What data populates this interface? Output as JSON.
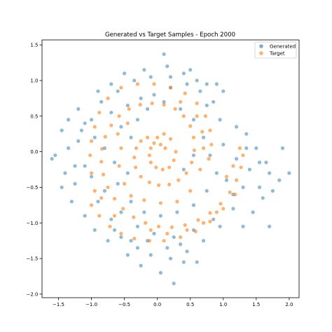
{
  "chart_data": {
    "type": "scatter",
    "title": "Generated vs Target Samples - Epoch 2000",
    "xlabel": "",
    "ylabel": "",
    "xlim": [
      -1.75,
      2.15
    ],
    "ylim": [
      -2.05,
      1.57
    ],
    "xticks": [
      -1.5,
      -1.0,
      -0.5,
      0.0,
      0.5,
      1.0,
      1.5,
      2.0
    ],
    "xtick_labels": [
      "−1.5",
      "−1.0",
      "−0.5",
      "0.0",
      "0.5",
      "1.0",
      "1.5",
      "2.0"
    ],
    "yticks": [
      -2.0,
      -1.5,
      -1.0,
      -0.5,
      0.0,
      0.5,
      1.0,
      1.5
    ],
    "ytick_labels": [
      "−2.0",
      "−1.5",
      "−1.0",
      "−0.5",
      "0.0",
      "0.5",
      "1.0",
      "1.5"
    ],
    "grid": false,
    "legend_position": "top-right",
    "series": [
      {
        "name": "Generated",
        "color": "#1f77b4",
        "alpha": 0.5,
        "points": [
          [
            -1.2,
            0.15
          ],
          [
            -1.35,
            0.05
          ],
          [
            -1.1,
            -0.2
          ],
          [
            -1.55,
            -0.05
          ],
          [
            -1.25,
            -0.45
          ],
          [
            -0.9,
            -0.7
          ],
          [
            -0.7,
            -0.95
          ],
          [
            -0.55,
            -1.2
          ],
          [
            -0.3,
            -1.35
          ],
          [
            -0.1,
            -1.45
          ],
          [
            0.2,
            -1.5
          ],
          [
            0.45,
            -1.4
          ],
          [
            0.7,
            -1.25
          ],
          [
            0.95,
            -1.05
          ],
          [
            1.15,
            -0.8
          ],
          [
            1.3,
            -0.5
          ],
          [
            1.4,
            -0.25
          ],
          [
            1.35,
            0.05
          ],
          [
            1.2,
            -0.1
          ],
          [
            1.0,
            0.1
          ],
          [
            1.55,
            -0.15
          ],
          [
            1.7,
            -0.3
          ],
          [
            1.85,
            -0.4
          ],
          [
            2.0,
            -0.3
          ],
          [
            1.9,
            0.05
          ],
          [
            -1.0,
            0.45
          ],
          [
            -0.85,
            0.7
          ],
          [
            -0.6,
            0.85
          ],
          [
            -0.35,
            1.0
          ],
          [
            -0.1,
            1.05
          ],
          [
            0.2,
            1.05
          ],
          [
            0.45,
            0.95
          ],
          [
            0.65,
            0.85
          ],
          [
            0.85,
            0.7
          ],
          [
            0.95,
            0.45
          ],
          [
            -0.5,
            1.1
          ],
          [
            -0.2,
            1.15
          ],
          [
            0.15,
            1.2
          ],
          [
            0.4,
            1.1
          ],
          [
            0.6,
            1.0
          ],
          [
            -0.7,
            0.55
          ],
          [
            -0.55,
            0.35
          ],
          [
            -0.4,
            0.2
          ],
          [
            -0.3,
            0.45
          ],
          [
            -0.15,
            0.6
          ],
          [
            0.1,
            0.7
          ],
          [
            0.35,
            0.6
          ],
          [
            0.55,
            0.45
          ],
          [
            0.7,
            0.2
          ],
          [
            0.8,
            -0.05
          ],
          [
            -0.6,
            -0.45
          ],
          [
            -0.4,
            -0.7
          ],
          [
            -0.2,
            -0.85
          ],
          [
            0.05,
            -0.9
          ],
          [
            0.3,
            -0.85
          ],
          [
            0.55,
            -0.75
          ],
          [
            0.75,
            -0.55
          ],
          [
            0.9,
            -0.3
          ],
          [
            1.05,
            -0.4
          ],
          [
            1.15,
            -0.6
          ],
          [
            -1.3,
            -0.7
          ],
          [
            -1.1,
            -0.9
          ],
          [
            -0.95,
            -1.1
          ],
          [
            -0.75,
            -1.25
          ],
          [
            -0.45,
            -1.45
          ],
          [
            -0.25,
            -1.6
          ],
          [
            0.05,
            -1.7
          ],
          [
            0.25,
            -1.85
          ],
          [
            0.4,
            -1.55
          ],
          [
            0.6,
            -1.55
          ],
          [
            -1.45,
            0.3
          ],
          [
            -1.6,
            -0.1
          ],
          [
            -1.4,
            -0.3
          ],
          [
            -1.15,
            0.3
          ],
          [
            -0.95,
            0.2
          ],
          [
            -0.8,
            0.05
          ],
          [
            -0.65,
            -0.15
          ],
          [
            -0.45,
            -0.3
          ],
          [
            0.4,
            -0.25
          ],
          [
            0.55,
            -0.05
          ],
          [
            0.1,
            1.37
          ],
          [
            0.5,
            1.15
          ],
          [
            0.75,
            0.95
          ],
          [
            1.0,
            0.85
          ],
          [
            0.9,
            0.95
          ],
          [
            -0.7,
            0.95
          ],
          [
            -0.9,
            0.85
          ],
          [
            -1.1,
            0.4
          ],
          [
            -1.2,
            0.6
          ],
          [
            -1.25,
            -0.2
          ],
          [
            1.6,
            -0.65
          ],
          [
            1.45,
            -0.85
          ],
          [
            1.3,
            -1.05
          ],
          [
            1.7,
            -1.05
          ],
          [
            1.55,
            -0.5
          ],
          [
            0.2,
            0.9
          ],
          [
            -0.05,
            0.8
          ],
          [
            -0.25,
            0.75
          ],
          [
            -0.45,
            0.65
          ],
          [
            0.75,
            0.65
          ],
          [
            -0.3,
            -1.05
          ],
          [
            -0.05,
            -1.15
          ],
          [
            0.25,
            -1.2
          ],
          [
            0.55,
            -1.1
          ],
          [
            0.85,
            -0.95
          ],
          [
            -0.55,
            -0.85
          ],
          [
            -0.8,
            -0.55
          ],
          [
            -1.0,
            -0.35
          ],
          [
            -1.45,
            -0.5
          ],
          [
            -1.35,
            0.45
          ],
          [
            1.2,
            0.35
          ],
          [
            1.35,
            0.25
          ],
          [
            1.5,
            0.05
          ],
          [
            1.65,
            -0.15
          ],
          [
            1.75,
            -0.55
          ],
          [
            -0.15,
            -1.25
          ],
          [
            0.15,
            -1.35
          ],
          [
            0.35,
            -1.3
          ],
          [
            -0.4,
            -1.25
          ],
          [
            -0.65,
            -1.1
          ]
        ]
      },
      {
        "name": "Target",
        "color": "#ff7f0e",
        "alpha": 0.6,
        "points": [
          [
            0.0,
            0.2
          ],
          [
            -0.05,
            0.12
          ],
          [
            -0.1,
            0.05
          ],
          [
            -0.12,
            -0.05
          ],
          [
            -0.1,
            -0.15
          ],
          [
            -0.02,
            -0.22
          ],
          [
            0.08,
            -0.25
          ],
          [
            0.18,
            -0.22
          ],
          [
            0.25,
            -0.12
          ],
          [
            0.28,
            0.0
          ],
          [
            0.1,
            0.25
          ],
          [
            0.2,
            0.18
          ],
          [
            0.05,
            0.1
          ],
          [
            0.12,
            0.05
          ],
          [
            -0.15,
            0.2
          ],
          [
            -0.25,
            0.15
          ],
          [
            -0.32,
            0.05
          ],
          [
            -0.35,
            -0.08
          ],
          [
            -0.33,
            -0.22
          ],
          [
            -0.25,
            -0.35
          ],
          [
            -0.12,
            -0.43
          ],
          [
            0.02,
            -0.47
          ],
          [
            0.18,
            -0.46
          ],
          [
            0.32,
            -0.4
          ],
          [
            0.44,
            -0.3
          ],
          [
            0.52,
            -0.15
          ],
          [
            0.56,
            0.02
          ],
          [
            0.55,
            0.2
          ],
          [
            0.5,
            0.36
          ],
          [
            0.4,
            0.5
          ],
          [
            0.27,
            0.6
          ],
          [
            0.1,
            0.66
          ],
          [
            -0.08,
            0.68
          ],
          [
            -0.26,
            0.66
          ],
          [
            -0.43,
            0.6
          ],
          [
            -0.58,
            0.5
          ],
          [
            -0.7,
            0.37
          ],
          [
            -0.79,
            0.21
          ],
          [
            -0.84,
            0.04
          ],
          [
            -0.85,
            -0.14
          ],
          [
            -0.82,
            -0.32
          ],
          [
            -0.75,
            -0.5
          ],
          [
            -0.65,
            -0.66
          ],
          [
            -0.52,
            -0.8
          ],
          [
            -0.36,
            -0.92
          ],
          [
            -0.18,
            -1.0
          ],
          [
            0.02,
            -1.05
          ],
          [
            0.22,
            -1.06
          ],
          [
            0.42,
            -1.03
          ],
          [
            0.62,
            -0.96
          ],
          [
            0.8,
            -0.86
          ],
          [
            0.96,
            -0.73
          ],
          [
            1.1,
            -0.57
          ],
          [
            1.2,
            -0.4
          ],
          [
            1.27,
            -0.22
          ],
          [
            1.3,
            -0.05
          ],
          [
            -1.0,
            -0.75
          ],
          [
            -0.88,
            -0.9
          ],
          [
            -0.72,
            -1.05
          ],
          [
            -0.55,
            -1.15
          ],
          [
            -0.35,
            -1.22
          ],
          [
            -0.12,
            -1.25
          ],
          [
            0.1,
            -1.25
          ],
          [
            0.35,
            -1.2
          ],
          [
            0.58,
            -1.12
          ],
          [
            0.8,
            -0.98
          ],
          [
            1.0,
            -0.8
          ],
          [
            1.18,
            -0.6
          ],
          [
            -0.95,
            0.35
          ],
          [
            -1.0,
            0.15
          ],
          [
            -1.02,
            -0.05
          ],
          [
            -1.0,
            -0.3
          ],
          [
            -0.95,
            -0.55
          ],
          [
            -0.88,
            0.55
          ],
          [
            -0.75,
            0.75
          ],
          [
            -0.55,
            0.9
          ],
          [
            -0.3,
            0.95
          ],
          [
            -0.05,
            0.95
          ],
          [
            0.2,
            0.9
          ],
          [
            0.42,
            0.82
          ],
          [
            0.6,
            0.68
          ],
          [
            0.73,
            0.5
          ],
          [
            0.8,
            0.3
          ],
          [
            0.82,
            0.1
          ],
          [
            0.78,
            -0.1
          ],
          [
            -0.6,
            0.25
          ],
          [
            -0.55,
            0.05
          ],
          [
            -0.58,
            -0.2
          ],
          [
            -0.5,
            -0.45
          ],
          [
            -0.45,
            0.4
          ],
          [
            0.35,
            0.7
          ],
          [
            0.6,
            0.5
          ],
          [
            0.68,
            0.28
          ],
          [
            0.7,
            0.05
          ],
          [
            0.65,
            -0.25
          ],
          [
            0.5,
            -0.55
          ],
          [
            0.3,
            -0.7
          ],
          [
            0.05,
            -0.72
          ],
          [
            -0.2,
            -0.68
          ],
          [
            -0.4,
            -0.62
          ],
          [
            1.05,
            -0.35
          ],
          [
            1.15,
            -0.2
          ],
          [
            1.25,
            0.05
          ],
          [
            -0.85,
            -0.65
          ],
          [
            -0.65,
            -0.9
          ],
          [
            -0.1,
            -1.1
          ],
          [
            0.15,
            -1.15
          ],
          [
            0.45,
            -1.1
          ],
          [
            0.7,
            -1.0
          ],
          [
            0.9,
            -0.85
          ]
        ]
      }
    ]
  }
}
